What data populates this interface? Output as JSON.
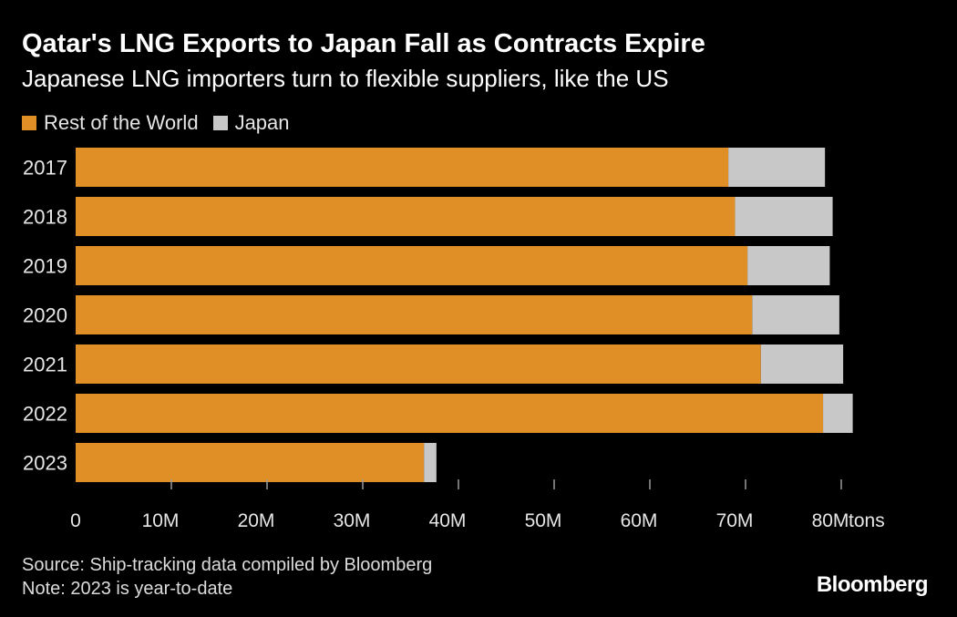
{
  "title": "Qatar's LNG Exports to Japan Fall as Contracts Expire",
  "subtitle": "Japanese LNG importers turn to flexible suppliers, like the US",
  "source": "Source: Ship-tracking data compiled by Bloomberg",
  "note": "Note: 2023 is year-to-date",
  "brand": "Bloomberg",
  "colors": {
    "background": "#000000",
    "rest_of_world": "#e08f27",
    "japan": "#c8c8c8",
    "axis_text": "#e6e6e6",
    "tick": "#9a9a9a"
  },
  "chart_data": {
    "type": "bar",
    "orientation": "horizontal",
    "stacked": true,
    "categories": [
      "2017",
      "2018",
      "2019",
      "2020",
      "2021",
      "2022",
      "2023"
    ],
    "series": [
      {
        "name": "Rest of the World",
        "color": "#e08f27",
        "values": [
          68.2,
          68.9,
          70.2,
          70.7,
          71.6,
          78.1,
          36.4
        ]
      },
      {
        "name": "Japan",
        "color": "#c8c8c8",
        "values": [
          10.1,
          10.2,
          8.6,
          9.1,
          8.6,
          3.1,
          1.3
        ]
      }
    ],
    "x_ticks": [
      "0",
      "10M",
      "20M",
      "30M",
      "40M",
      "50M",
      "60M",
      "70M",
      "80M"
    ],
    "x_tick_values": [
      0,
      10,
      20,
      30,
      40,
      50,
      60,
      70,
      80
    ],
    "x_unit": "tons",
    "xlim": [
      0,
      84
    ],
    "grid": false,
    "legend_placement": "top-left"
  }
}
